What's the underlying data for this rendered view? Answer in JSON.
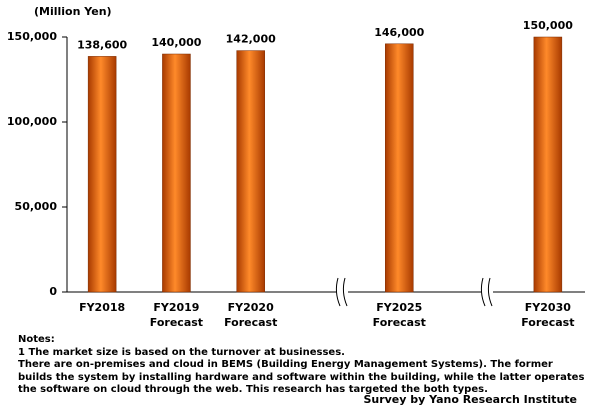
{
  "chart_data": {
    "type": "bar",
    "unit_label": "(Million Yen)",
    "categories": [
      "FY2018",
      "FY2019\nForecast",
      "FY2020\nForecast",
      null,
      "FY2025\nForecast",
      null,
      "FY2030\nForecast"
    ],
    "values": [
      138600,
      140000,
      142000,
      null,
      146000,
      null,
      150000
    ],
    "value_labels": [
      "138,600",
      "140,000",
      "142,000",
      null,
      "146,000",
      null,
      "150,000"
    ],
    "color": "#e8600a",
    "ylim": [
      0,
      150000
    ],
    "yticks": [
      0,
      {
        "value": 50000,
        "label": "50,000"
      },
      {
        "value": 100000,
        "label": "100,000"
      },
      {
        "value": 150000,
        "label": "150,000"
      }
    ],
    "grid": false,
    "notes": [
      "Notes:",
      "1 The market size is based on the turnover at businesses.",
      "There are on-premises and cloud in BEMS (Building Energy Management Systems). The former builds the system by installing hardware and software within the building, while the latter operates the software on cloud through the web. This research has targeted the both types."
    ],
    "source": "Survey by Yano Research Institute"
  }
}
